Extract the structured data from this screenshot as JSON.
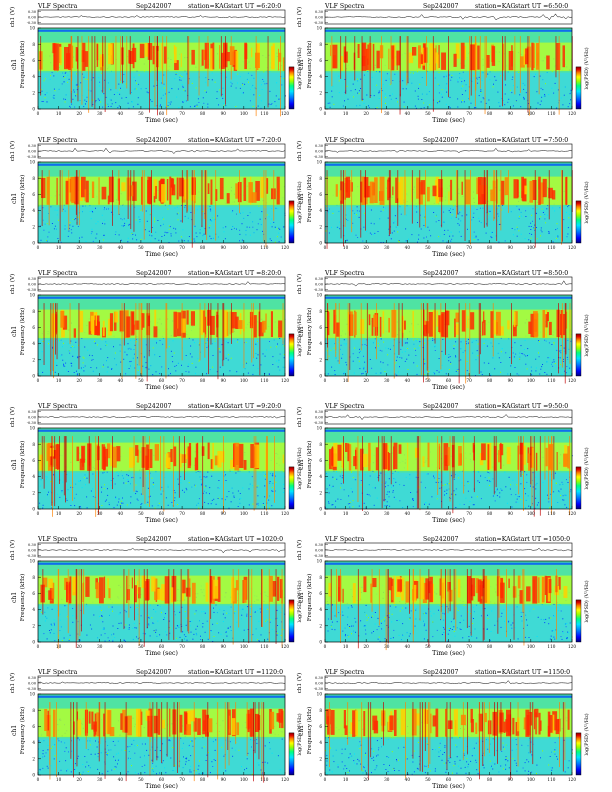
{
  "labels": {
    "instrument": "VLF Spectra",
    "station": "station=KAG",
    "start_prefix": "start  UT",
    "ch1_axis": "ch1 (V)",
    "freq_axis_top": "ch1",
    "freq_axis_bottom": "Frequency  (kHz)",
    "colorbar_label": "log(PSD) (V²/Hz)",
    "x_axis_label": "Time  (sec)"
  },
  "chart_data": [
    {
      "type": "heatmap",
      "title": "VLF Spectra",
      "date": "Sep242007",
      "station": "station=KAG",
      "start_ut": "=6:20:0",
      "xlim": [
        0,
        120
      ],
      "ylim_freq": [
        0,
        10
      ],
      "ch1_ticks": [
        "0.30",
        "0.00",
        "-0.30"
      ],
      "x_ticks": [
        0,
        10,
        20,
        30,
        40,
        50,
        60,
        70,
        80,
        90,
        100,
        110,
        120
      ],
      "y_ticks": [
        0,
        2,
        4,
        6,
        8,
        10
      ]
    },
    {
      "type": "heatmap",
      "title": "VLF Spectra",
      "date": "Sep242007",
      "station": "station=KAG",
      "start_ut": "=6:50:0",
      "xlim": [
        0,
        120
      ],
      "ylim_freq": [
        0,
        10
      ],
      "ch1_ticks": [
        "0.30",
        "0.00",
        "-0.30"
      ],
      "x_ticks": [
        0,
        10,
        20,
        30,
        40,
        50,
        60,
        70,
        80,
        90,
        100,
        110,
        120
      ],
      "y_ticks": [
        0,
        2,
        4,
        6,
        8,
        10
      ]
    },
    {
      "type": "heatmap",
      "title": "VLF Spectra",
      "date": "Sep242007",
      "station": "station=KAG",
      "start_ut": "=7:20:0",
      "xlim": [
        0,
        120
      ],
      "ylim_freq": [
        0,
        10
      ],
      "ch1_ticks": [
        "0.30",
        "0.00",
        "-0.30"
      ],
      "x_ticks": [
        0,
        10,
        20,
        30,
        40,
        50,
        60,
        70,
        80,
        90,
        100,
        110,
        120
      ],
      "y_ticks": [
        0,
        2,
        4,
        6,
        8,
        10
      ]
    },
    {
      "type": "heatmap",
      "title": "VLF Spectra",
      "date": "Sep242007",
      "station": "station=KAG",
      "start_ut": "=7:50:0",
      "xlim": [
        0,
        120
      ],
      "ylim_freq": [
        0,
        10
      ],
      "ch1_ticks": [
        "0.30",
        "0.00",
        "-0.30"
      ],
      "x_ticks": [
        0,
        10,
        20,
        30,
        40,
        50,
        60,
        70,
        80,
        90,
        100,
        110,
        120
      ],
      "y_ticks": [
        0,
        2,
        4,
        6,
        8,
        10
      ]
    },
    {
      "type": "heatmap",
      "title": "VLF Spectra",
      "date": "Sep242007",
      "station": "station=KAG",
      "start_ut": "=8:20:0",
      "xlim": [
        0,
        120
      ],
      "ylim_freq": [
        0,
        10
      ],
      "ch1_ticks": [
        "0.30",
        "0.00",
        "-0.30"
      ],
      "x_ticks": [
        0,
        10,
        20,
        30,
        40,
        50,
        60,
        70,
        80,
        90,
        100,
        110,
        120
      ],
      "y_ticks": [
        0,
        2,
        4,
        6,
        8,
        10
      ]
    },
    {
      "type": "heatmap",
      "title": "VLF Spectra",
      "date": "Sep242007",
      "station": "station=KAG",
      "start_ut": "=8:50:0",
      "xlim": [
        0,
        120
      ],
      "ylim_freq": [
        0,
        10
      ],
      "ch1_ticks": [
        "0.30",
        "0.00",
        "-0.30"
      ],
      "x_ticks": [
        0,
        10,
        20,
        30,
        40,
        50,
        60,
        70,
        80,
        90,
        100,
        110,
        120
      ],
      "y_ticks": [
        0,
        2,
        4,
        6,
        8,
        10
      ]
    },
    {
      "type": "heatmap",
      "title": "VLF Spectra",
      "date": "Sep242007",
      "station": "station=KAG",
      "start_ut": "=9:20:0",
      "xlim": [
        0,
        120
      ],
      "ylim_freq": [
        0,
        10
      ],
      "ch1_ticks": [
        "0.30",
        "0.00",
        "-0.30"
      ],
      "x_ticks": [
        0,
        10,
        20,
        30,
        40,
        50,
        60,
        70,
        80,
        90,
        100,
        110,
        120
      ],
      "y_ticks": [
        0,
        2,
        4,
        6,
        8,
        10
      ]
    },
    {
      "type": "heatmap",
      "title": "VLF Spectra",
      "date": "Sep242007",
      "station": "station=KAG",
      "start_ut": "=9:50:0",
      "xlim": [
        0,
        120
      ],
      "ylim_freq": [
        0,
        10
      ],
      "ch1_ticks": [
        "0.30",
        "0.00",
        "-0.30"
      ],
      "x_ticks": [
        0,
        10,
        20,
        30,
        40,
        50,
        60,
        70,
        80,
        90,
        100,
        110,
        120
      ],
      "y_ticks": [
        0,
        2,
        4,
        6,
        8,
        10
      ]
    },
    {
      "type": "heatmap",
      "title": "VLF Spectra",
      "date": "Sep242007",
      "station": "station=KAG",
      "start_ut": "=1020:0",
      "xlim": [
        0,
        120
      ],
      "ylim_freq": [
        0,
        10
      ],
      "ch1_ticks": [
        "0.30",
        "0.00",
        "-0.30"
      ],
      "x_ticks": [
        0,
        10,
        20,
        30,
        40,
        50,
        60,
        70,
        80,
        90,
        100,
        110,
        120
      ],
      "y_ticks": [
        0,
        2,
        4,
        6,
        8,
        10
      ]
    },
    {
      "type": "heatmap",
      "title": "VLF Spectra",
      "date": "Sep242007",
      "station": "station=KAG",
      "start_ut": "=1050:0",
      "xlim": [
        0,
        120
      ],
      "ylim_freq": [
        0,
        10
      ],
      "ch1_ticks": [
        "0.30",
        "0.00",
        "-0.30"
      ],
      "x_ticks": [
        0,
        10,
        20,
        30,
        40,
        50,
        60,
        70,
        80,
        90,
        100,
        110,
        120
      ],
      "y_ticks": [
        0,
        2,
        4,
        6,
        8,
        10
      ]
    },
    {
      "type": "heatmap",
      "title": "VLF Spectra",
      "date": "Sep242007",
      "station": "station=KAG",
      "start_ut": "=1120:0",
      "xlim": [
        0,
        120
      ],
      "ylim_freq": [
        0,
        10
      ],
      "ch1_ticks": [
        "0.30",
        "0.00",
        "-0.30"
      ],
      "x_ticks": [
        0,
        10,
        20,
        30,
        40,
        50,
        60,
        70,
        80,
        90,
        100,
        110,
        120
      ],
      "y_ticks": [
        0,
        2,
        4,
        6,
        8,
        10
      ]
    },
    {
      "type": "heatmap",
      "title": "VLF Spectra",
      "date": "Sep242007",
      "station": "station=KAG",
      "start_ut": "=1150:0",
      "xlim": [
        0,
        120
      ],
      "ylim_freq": [
        0,
        10
      ],
      "ch1_ticks": [
        "0.30",
        "0.00",
        "-0.30"
      ],
      "x_ticks": [
        0,
        10,
        20,
        30,
        40,
        50,
        60,
        70,
        80,
        90,
        100,
        110,
        120
      ],
      "y_ticks": [
        0,
        2,
        4,
        6,
        8,
        10
      ]
    }
  ],
  "colors": {
    "ramp": [
      "#00007a",
      "#0000ff",
      "#0080ff",
      "#00e5ff",
      "#00ff80",
      "#9cff00",
      "#ffff00",
      "#ff8000",
      "#e00000",
      "#800000"
    ]
  }
}
